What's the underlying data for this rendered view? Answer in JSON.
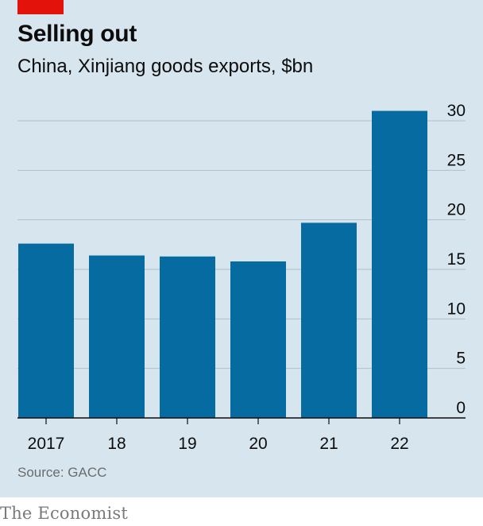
{
  "title": "Selling out",
  "subtitle": "China, Xinjiang goods exports, $bn",
  "source": "Source: GACC",
  "brand": "The Economist",
  "colors": {
    "bar": "#066ba0",
    "panel": "#d7e6ee",
    "accent": "#e3120b",
    "grid": "#aebfc9",
    "axis": "#0c0c0c"
  },
  "chart_data": {
    "type": "bar",
    "categories": [
      "2017",
      "18",
      "19",
      "20",
      "21",
      "22"
    ],
    "values": [
      17.6,
      16.4,
      16.3,
      15.8,
      19.7,
      31.0
    ],
    "ylim": [
      0,
      30
    ],
    "yticks": [
      "0",
      "5",
      "10",
      "15",
      "20",
      "25",
      "30"
    ],
    "grid": true,
    "xlabel": "",
    "ylabel": ""
  }
}
